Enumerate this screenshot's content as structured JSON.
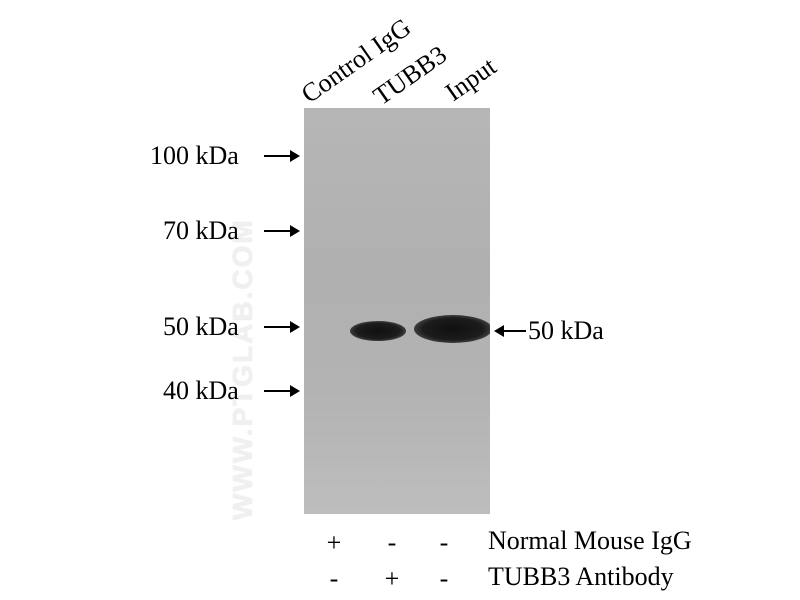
{
  "lanes": [
    {
      "label": "Control IgG"
    },
    {
      "label": "TUBB3"
    },
    {
      "label": "Input"
    }
  ],
  "markers": [
    {
      "label": "100 kDa"
    },
    {
      "label": "70 kDa"
    },
    {
      "label": "50 kDa"
    },
    {
      "label": "40 kDa"
    }
  ],
  "band_marker": {
    "label": "50 kDa"
  },
  "watermark": {
    "text": "WWW.PTGLAB.COM"
  },
  "conditions": [
    {
      "label": "Normal Mouse IgG",
      "signs": [
        "+",
        "-",
        "-"
      ]
    },
    {
      "label": "TUBB3 Antibody",
      "signs": [
        "-",
        "+",
        "-"
      ]
    }
  ]
}
